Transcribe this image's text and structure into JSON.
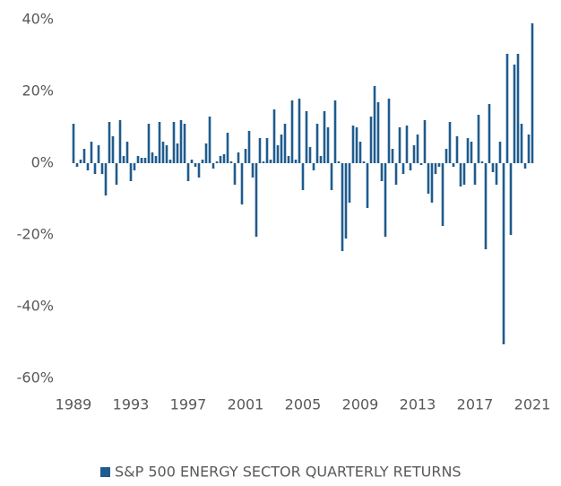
{
  "chart_data": {
    "type": "bar",
    "categories": [
      "1989",
      null,
      null,
      null,
      null,
      null,
      null,
      null,
      null,
      null,
      null,
      null,
      null,
      null,
      null,
      null,
      "1993",
      null,
      null,
      null,
      null,
      null,
      null,
      null,
      null,
      null,
      null,
      null,
      null,
      null,
      null,
      null,
      "1997",
      null,
      null,
      null,
      null,
      null,
      null,
      null,
      null,
      null,
      null,
      null,
      null,
      null,
      null,
      null,
      "2001",
      null,
      null,
      null,
      null,
      null,
      null,
      null,
      null,
      null,
      null,
      null,
      null,
      null,
      null,
      null,
      "2005",
      null,
      null,
      null,
      null,
      null,
      null,
      null,
      null,
      null,
      null,
      null,
      null,
      null,
      null,
      null,
      "2009",
      null,
      null,
      null,
      null,
      null,
      null,
      null,
      null,
      null,
      null,
      null,
      null,
      null,
      null,
      null,
      "2013",
      null,
      null,
      null,
      null,
      null,
      null,
      null,
      null,
      null,
      null,
      null,
      null,
      null,
      null,
      null,
      "2017",
      null,
      null,
      null,
      null,
      null,
      null,
      null,
      null,
      null,
      null,
      null,
      null,
      null,
      null,
      null,
      "2021"
    ],
    "series": [
      {
        "name": "S&P 500 ENERGY SECTOR QUARTERLY RETURNS",
        "color": "#1f5b8e",
        "values": [
          11,
          -1,
          1,
          4,
          -2,
          6,
          -3,
          5,
          -3,
          -9,
          11.5,
          7.5,
          -6,
          12,
          2,
          6,
          -5,
          -2,
          2,
          1.5,
          1.5,
          11,
          3,
          2,
          11.5,
          6,
          5,
          1,
          11.5,
          5.5,
          12,
          11,
          -5,
          1,
          -1,
          -4,
          1,
          5.5,
          13,
          -1.5,
          0.5,
          2,
          2.5,
          8.5,
          0.5,
          -6,
          3,
          -11.5,
          4,
          9,
          -4,
          -20.5,
          7,
          0.5,
          7,
          1,
          15,
          5,
          8,
          11,
          2,
          17.5,
          1,
          18,
          -7.5,
          14.5,
          4.5,
          -2,
          11,
          2,
          14.5,
          10,
          -7.5,
          17.5,
          0.5,
          -24.5,
          -21,
          -11,
          10.5,
          10,
          6,
          0.5,
          -12.5,
          13,
          21.5,
          17,
          -5,
          -20.5,
          18,
          4,
          -6,
          10,
          -3,
          10.5,
          -2,
          5,
          8,
          -0.5,
          12,
          -8.5,
          -11,
          -3,
          -1,
          -17.5,
          4,
          11.5,
          -1,
          7.5,
          -6.5,
          -6,
          7,
          6,
          -6,
          13.5,
          0.5,
          -24,
          16.5,
          -2.5,
          -6,
          6,
          -50.5,
          30.5,
          -20,
          27.5,
          30.5,
          11,
          -1.5,
          8,
          39
        ]
      }
    ],
    "ylim": [
      -60,
      40
    ],
    "yticks": [
      {
        "value": -60,
        "label": "-60%"
      },
      {
        "value": -40,
        "label": "-40%"
      },
      {
        "value": -20,
        "label": "-20%"
      },
      {
        "value": 0,
        "label": "0%"
      },
      {
        "value": 20,
        "label": "20%"
      },
      {
        "value": 40,
        "label": "40%"
      }
    ],
    "grid": false,
    "legend": "bottom"
  }
}
